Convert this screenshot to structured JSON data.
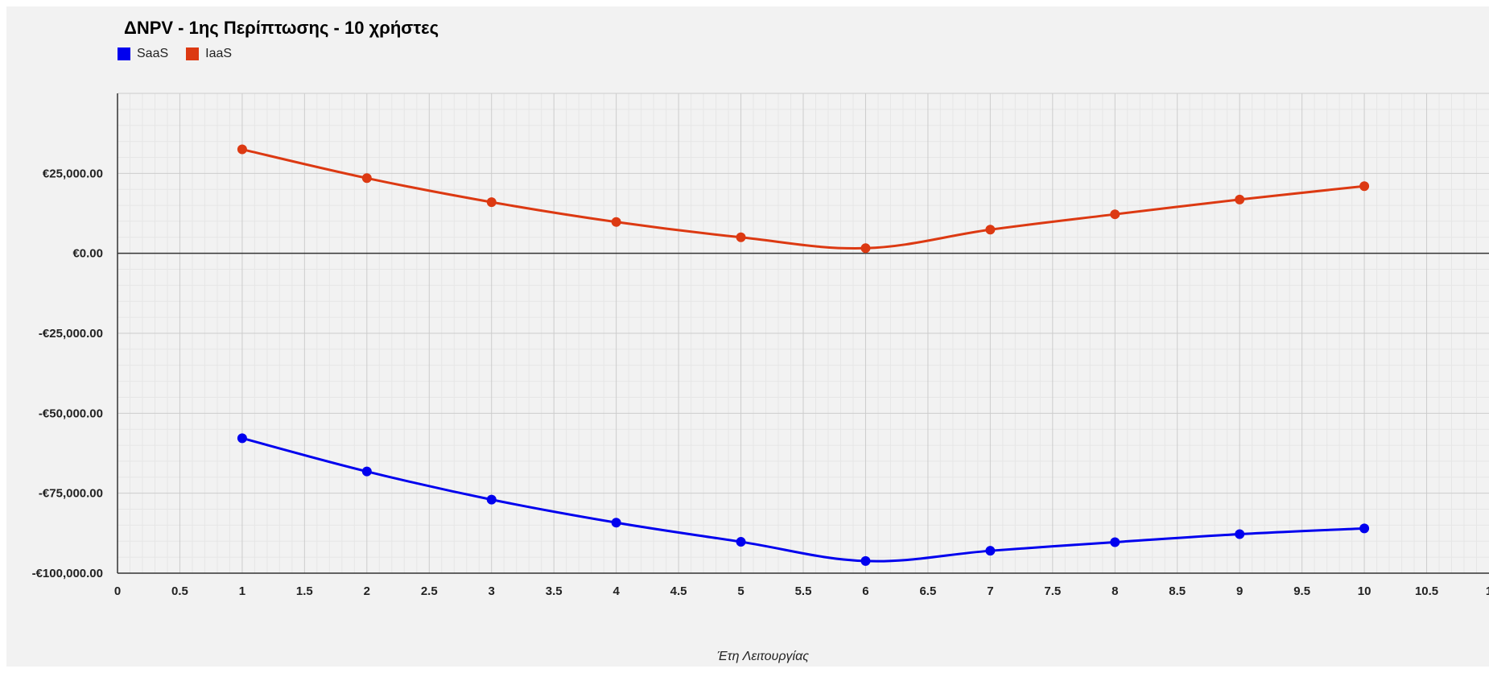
{
  "chart_data": {
    "type": "line",
    "title": "ΔNPV - 1ης Περίπτωσης - 10 χρήστες",
    "xlabel": "Έτη Λειτουργίας",
    "ylabel": "",
    "x": [
      1,
      2,
      3,
      4,
      5,
      6,
      7,
      8,
      9,
      10
    ],
    "xlim": [
      0,
      11
    ],
    "ylim": [
      -100000,
      50000
    ],
    "x_ticks": [
      "0",
      "0.5",
      "1",
      "1.5",
      "2",
      "2.5",
      "3",
      "3.5",
      "4",
      "4.5",
      "5",
      "5.5",
      "6",
      "6.5",
      "7",
      "7.5",
      "8",
      "8.5",
      "9",
      "9.5",
      "10",
      "10.5",
      "1"
    ],
    "y_ticks": [
      {
        "value": 25000,
        "label": "€25,000.00"
      },
      {
        "value": 0,
        "label": "€0.00"
      },
      {
        "value": -25000,
        "label": "-€25,000.00"
      },
      {
        "value": -50000,
        "label": "-€50,000.00"
      },
      {
        "value": -75000,
        "label": "-€75,000.00"
      },
      {
        "value": -100000,
        "label": "-€100,000.00"
      }
    ],
    "grid": true,
    "legend_position": "top-left",
    "series": [
      {
        "name": "SaaS",
        "color": "#0000ee",
        "values": [
          -57800,
          -68200,
          -77000,
          -84200,
          -90200,
          -96200,
          -93000,
          -90300,
          -87800,
          -86000
        ]
      },
      {
        "name": "IaaS",
        "color": "#dc3912",
        "values": [
          32500,
          23500,
          16000,
          9800,
          5000,
          1600,
          7400,
          12200,
          16800,
          21000
        ]
      }
    ]
  }
}
